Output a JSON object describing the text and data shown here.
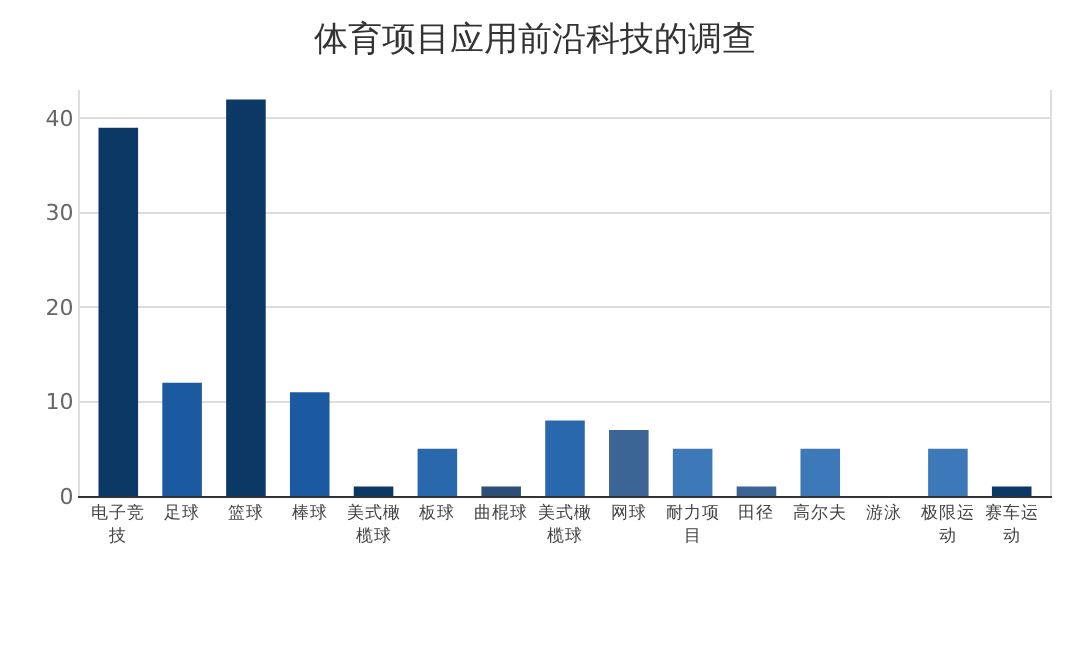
{
  "chart_data": {
    "type": "bar",
    "title": "体育项目应用前沿科技的调查",
    "categories": [
      "电子竞技",
      "足球",
      "篮球",
      "棒球",
      "美式橄榄球",
      "板球",
      "曲棍球",
      "美式橄榄球",
      "网球",
      "耐力项目",
      "田径",
      "高尔夫",
      "游泳",
      "极限运动",
      "赛车运动"
    ],
    "values": [
      39,
      12,
      42,
      11,
      1,
      5,
      1,
      8,
      7,
      5,
      1,
      5,
      0,
      5,
      1
    ],
    "colors": [
      "#0c3866",
      "#1b5aa0",
      "#0c3866",
      "#1b5aa0",
      "#0c3866",
      "#2a68ad",
      "#2c4f78",
      "#2a68ad",
      "#3a6595",
      "#3d78b8",
      "#3a6595",
      "#3d78b8",
      "#3d78b8",
      "#3d78b8",
      "#0c3866"
    ],
    "ylim": [
      0,
      43
    ],
    "yticks": [
      0,
      10,
      20,
      30,
      40
    ],
    "grid": "y"
  }
}
